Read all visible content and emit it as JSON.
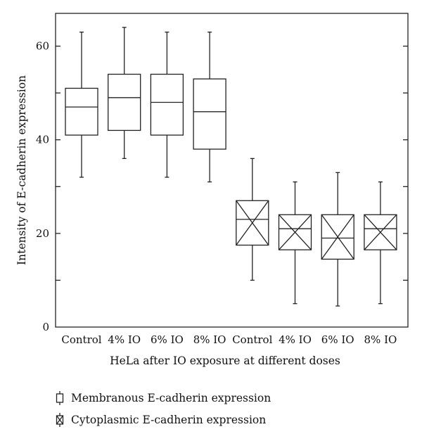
{
  "chart_data": {
    "type": "box",
    "xlabel": "HeLa after IO exposure at different doses",
    "ylabel": "Intensity of E-cadherin expression",
    "ylim": [
      0,
      67
    ],
    "yticks": [
      0,
      20,
      40,
      60
    ],
    "categories": [
      "Control",
      "4% IO",
      "6% IO",
      "8% IO",
      "Control",
      "4% IO",
      "6% IO",
      "8% IO"
    ],
    "series": [
      {
        "name": "Membranous E-cadherin expression",
        "style": "plain",
        "boxes": [
          {
            "category": "Control",
            "min": 32,
            "q1": 41,
            "median": 47,
            "q3": 51,
            "max": 63
          },
          {
            "category": "4% IO",
            "min": 36,
            "q1": 42,
            "median": 49,
            "q3": 54,
            "max": 64
          },
          {
            "category": "6% IO",
            "min": 32,
            "q1": 41,
            "median": 48,
            "q3": 54,
            "max": 63
          },
          {
            "category": "8% IO",
            "min": 31,
            "q1": 38,
            "median": 46,
            "q3": 53,
            "max": 63
          }
        ]
      },
      {
        "name": "Cytoplasmic E-cadherin expression",
        "style": "crossed",
        "boxes": [
          {
            "category": "Control",
            "min": 10,
            "q1": 17.5,
            "median": 23,
            "q3": 27,
            "max": 36
          },
          {
            "category": "4% IO",
            "min": 5,
            "q1": 16.5,
            "median": 21,
            "q3": 24,
            "max": 31
          },
          {
            "category": "6% IO",
            "min": 4.5,
            "q1": 14.5,
            "median": 19,
            "q3": 24,
            "max": 33
          },
          {
            "category": "8% IO",
            "min": 5,
            "q1": 16.5,
            "median": 21,
            "q3": 24,
            "max": 31
          }
        ]
      }
    ],
    "legend": {
      "placement": "bottom-left",
      "entries": [
        "Membranous E-cadherin expression",
        "Cytoplasmic E-cadherin expression"
      ]
    },
    "grid": false
  }
}
